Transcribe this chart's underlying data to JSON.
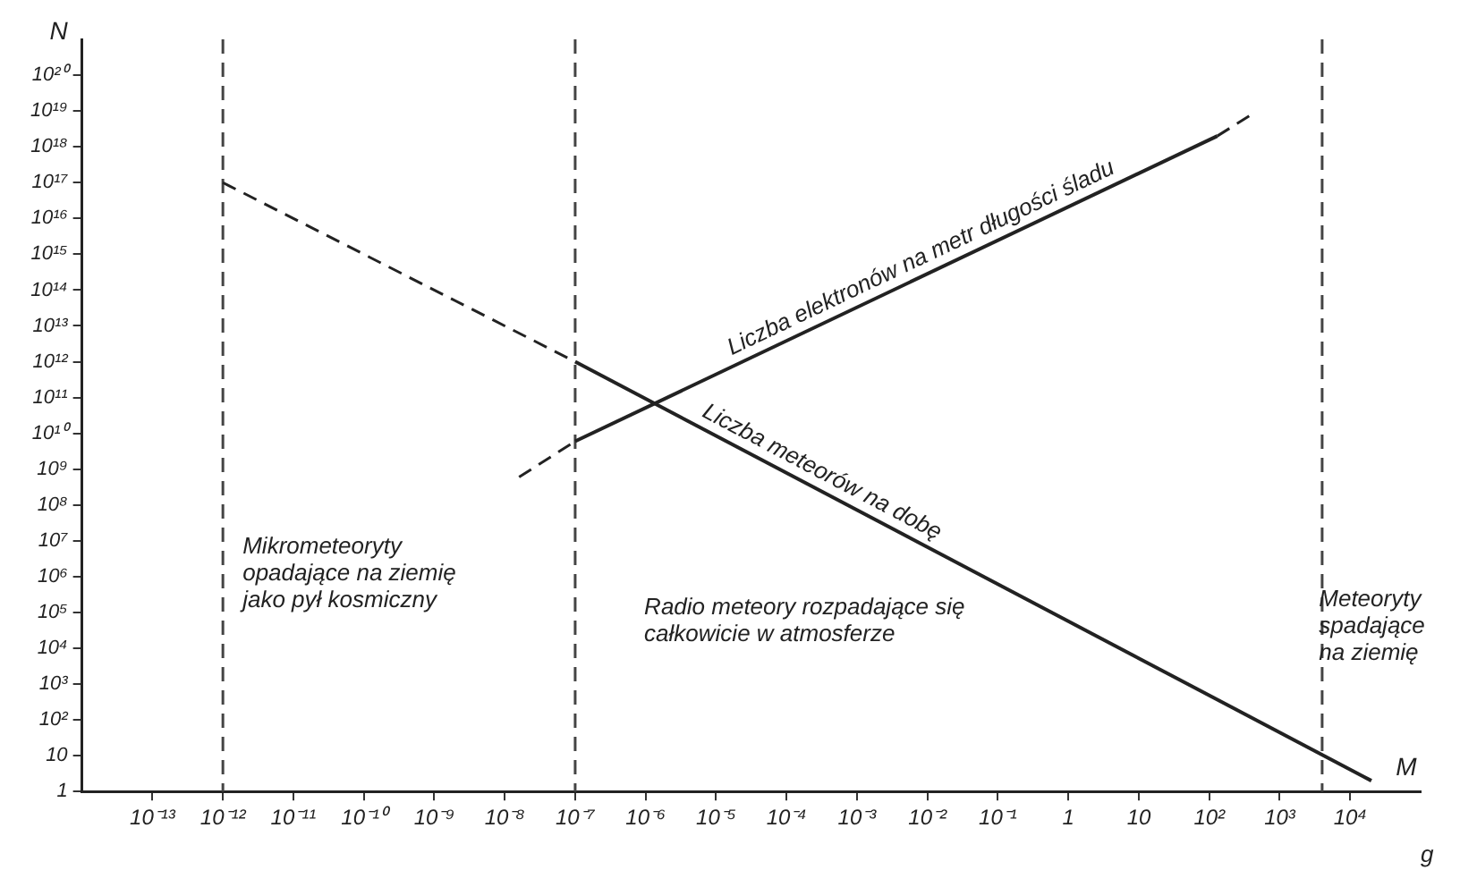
{
  "chart_data": {
    "type": "line",
    "xlabel": "M",
    "ylabel": "N",
    "log": "xy",
    "grid": false,
    "legend": false,
    "marker": "none",
    "xlim": [
      1e-14,
      100000.0
    ],
    "ylim": [
      1,
      1e+21
    ],
    "xticks": [
      {
        "value": 1e-13,
        "label": "10⁻¹³"
      },
      {
        "value": 1e-12,
        "label": "10⁻¹²"
      },
      {
        "value": 1e-11,
        "label": "10⁻¹¹"
      },
      {
        "value": 1e-10,
        "label": "10⁻¹⁰"
      },
      {
        "value": 1e-09,
        "label": "10⁻⁹"
      },
      {
        "value": 1e-08,
        "label": "10⁻⁸"
      },
      {
        "value": 1e-07,
        "label": "10⁻⁷"
      },
      {
        "value": 1e-06,
        "label": "10⁻⁶"
      },
      {
        "value": 1e-05,
        "label": "10⁻⁵"
      },
      {
        "value": 0.0001,
        "label": "10⁻⁴"
      },
      {
        "value": 0.001,
        "label": "10⁻³"
      },
      {
        "value": 0.01,
        "label": "10⁻²"
      },
      {
        "value": 0.1,
        "label": "10⁻¹"
      },
      1,
      10,
      {
        "value": 100,
        "label": "10²"
      },
      {
        "value": 1000,
        "label": "10³"
      },
      {
        "value": 10000,
        "label": "10⁴"
      }
    ],
    "yticks": [
      1,
      10,
      {
        "value": 100.0,
        "label": "10²"
      },
      {
        "value": 1000.0,
        "label": "10³"
      },
      {
        "value": 10000.0,
        "label": "10⁴"
      },
      {
        "value": 100000.0,
        "label": "10⁵"
      },
      {
        "value": 1000000.0,
        "label": "10⁶"
      },
      {
        "value": 10000000.0,
        "label": "10⁷"
      },
      {
        "value": 100000000.0,
        "label": "10⁸"
      },
      {
        "value": 1000000000.0,
        "label": "10⁹"
      },
      {
        "value": 10000000000.0,
        "label": "10¹⁰"
      },
      {
        "value": 100000000000.0,
        "label": "10¹¹"
      },
      {
        "value": 1000000000000.0,
        "label": "10¹²"
      },
      {
        "value": 10000000000000.0,
        "label": "10¹³"
      },
      {
        "value": 100000000000000.0,
        "label": "10¹⁴"
      },
      {
        "value": 1000000000000000.0,
        "label": "10¹⁵"
      },
      {
        "value": 1e+16,
        "label": "10¹⁶"
      },
      {
        "value": 1e+17,
        "label": "10¹⁷"
      },
      {
        "value": 1e+18,
        "label": "10¹⁸"
      },
      {
        "value": 1e+19,
        "label": "10¹⁹"
      },
      {
        "value": 1e+20,
        "label": "10²⁰"
      }
    ],
    "series": [
      {
        "line_style": "dashed",
        "color": "#222222",
        "x": [
          1e-12,
          1e-07
        ],
        "values": [
          1e+17,
          1000000000000.0
        ]
      },
      {
        "name": "Liczba meteorów na dobę",
        "line_style": "solid",
        "color": "#222222",
        "x": [
          1e-07,
          20000.0
        ],
        "values": [
          1000000000000.0,
          2
        ]
      },
      {
        "line_style": "dashed",
        "color": "#222222",
        "x": [
          1.6e-08,
          1e-07
        ],
        "values": [
          600000000.0,
          6000000000.0
        ]
      },
      {
        "name": "Liczba elektronów na metr długości śladu",
        "line_style": "solid",
        "color": "#222222",
        "x": [
          1e-07,
          130
        ],
        "values": [
          6000000000.0,
          2e+18
        ]
      },
      {
        "line_style": "dashed",
        "color": "#222222",
        "x": [
          130,
          400
        ],
        "values": [
          2e+18,
          8e+18
        ]
      }
    ],
    "ref_lines": [
      {
        "axis": "x",
        "value": 1e-12,
        "line_style": "dashed",
        "color": "#444444"
      },
      {
        "axis": "x",
        "value": 1e-07,
        "line_style": "dashed",
        "color": "#444444"
      },
      {
        "axis": "x",
        "value": 4000,
        "line_style": "dashed",
        "color": "#444444"
      }
    ],
    "annotations": [
      "Mikrometeoryty opadające na ziemię jako pył kosmiczny",
      "Radio meteory rozpadające się całkowicie w atmosferze",
      "Meteoryty spadające na ziemię",
      "g"
    ]
  }
}
